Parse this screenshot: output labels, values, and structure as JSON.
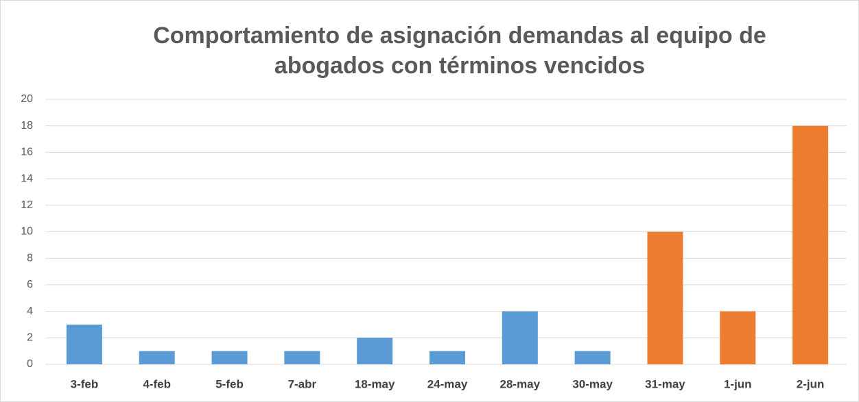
{
  "chart_data": {
    "type": "bar",
    "title": "Comportamiento de asignación demandas al equipo de abogados con términos vencidos",
    "categories": [
      "3-feb",
      "4-feb",
      "5-feb",
      "7-abr",
      "18-may",
      "24-may",
      "28-may",
      "30-may",
      "31-may",
      "1-jun",
      "2-jun"
    ],
    "values": [
      3,
      1,
      1,
      1,
      2,
      1,
      4,
      1,
      10,
      4,
      18
    ],
    "colors": [
      "#5b9bd5",
      "#5b9bd5",
      "#5b9bd5",
      "#5b9bd5",
      "#5b9bd5",
      "#5b9bd5",
      "#5b9bd5",
      "#5b9bd5",
      "#ed7d31",
      "#ed7d31",
      "#ed7d31"
    ],
    "ylim": [
      0,
      20
    ],
    "yticks": [
      0,
      2,
      4,
      6,
      8,
      10,
      12,
      14,
      16,
      18,
      20
    ],
    "grid": true
  }
}
